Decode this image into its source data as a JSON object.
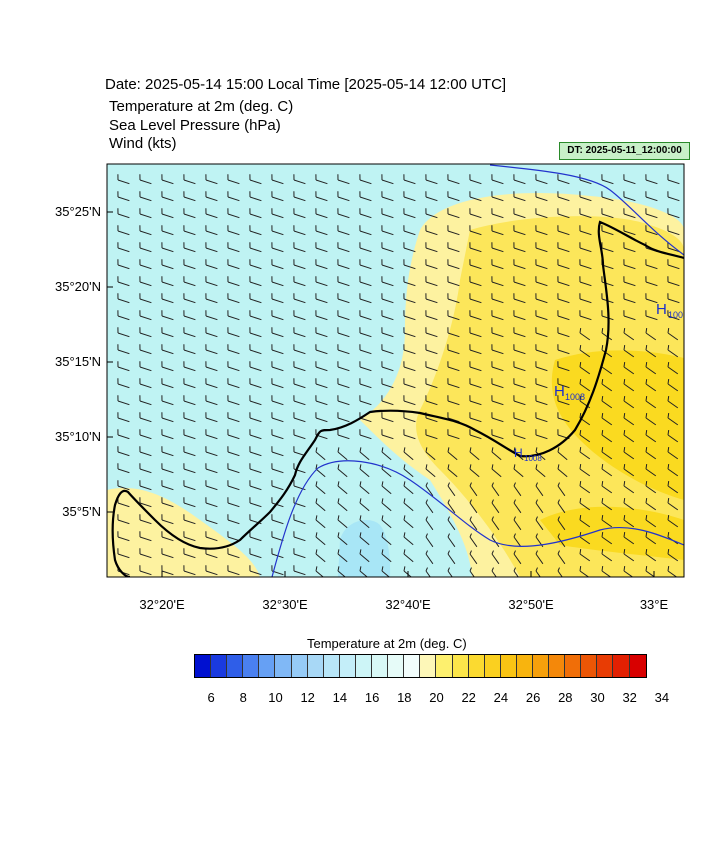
{
  "header": {
    "date_line": "Date: 2025-05-14  15:00 Local Time [2025-05-14  12:00 UTC]",
    "fields": [
      "Temperature at 2m   (deg. C)",
      "Sea Level Pressure   (hPa)",
      "Wind   (kts)"
    ],
    "dt_badge": "DT: 2025-05-11_12:00:00"
  },
  "map": {
    "lat_labels": [
      "35°25'N",
      "35°20'N",
      "35°15'N",
      "35°10'N",
      "35°5'N"
    ],
    "lon_labels": [
      "32°20'E",
      "32°30'E",
      "32°40'E",
      "32°50'E",
      "33°E"
    ],
    "pressure_highs": [
      {
        "symbol": "H",
        "value": "1008"
      },
      {
        "symbol": "H",
        "value": "1008"
      },
      {
        "symbol": "H",
        "value": "100"
      }
    ],
    "colors": {
      "sea_temp": "#bff3f3",
      "land_temp_low": "#fdf2a0",
      "land_temp_mid": "#fce65a",
      "land_temp_high": "#fada20",
      "coastline": "#000000",
      "isobar": "#2233cc"
    }
  },
  "colorbar": {
    "title": "Temperature at 2m  (deg. C)",
    "tick_labels": [
      "6",
      "8",
      "10",
      "12",
      "14",
      "16",
      "18",
      "20",
      "22",
      "24",
      "26",
      "28",
      "30",
      "32",
      "34"
    ],
    "colors": [
      "#0010d0",
      "#1a3ae0",
      "#2f5ee8",
      "#4a80f0",
      "#66a0f4",
      "#80b8f6",
      "#96cbf7",
      "#a8d8f6",
      "#b8e6f8",
      "#c4eef9",
      "#cdf5f7",
      "#d8f8f6",
      "#e6fbf8",
      "#f2fdfc",
      "#fdf7b8",
      "#fdf06e",
      "#fce64a",
      "#fbda30",
      "#fad020",
      "#f9c414",
      "#f8b40e",
      "#f6a00c",
      "#f4880a",
      "#f06e08",
      "#ec5606",
      "#e83c04",
      "#e22002",
      "#d80000"
    ]
  }
}
